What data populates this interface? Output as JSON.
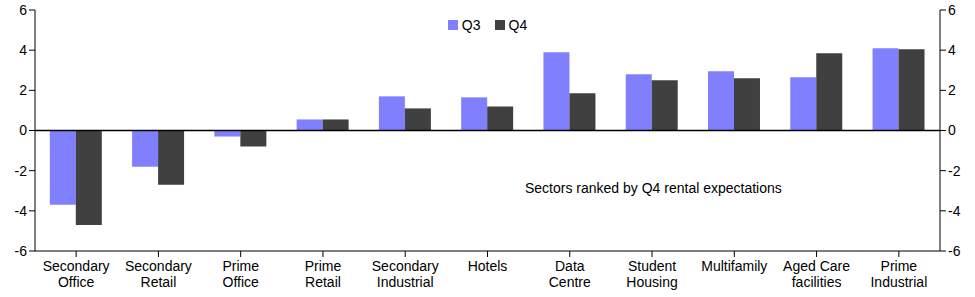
{
  "chart_data": {
    "type": "bar",
    "annotation": "Sectors ranked by Q4 rental expectations",
    "categories": [
      "Secondary\nOffice",
      "Secondary\nRetail",
      "Prime\nOffice",
      "Prime\nRetail",
      "Secondary\nIndustrial",
      "Hotels",
      "Data\nCentre",
      "Student\nHousing",
      "Multifamily",
      "Aged Care\nfacilities",
      "Prime\nIndustrial"
    ],
    "series": [
      {
        "name": "Q3",
        "color": "#8080ff",
        "values": [
          -3.7,
          -1.8,
          -0.3,
          0.55,
          1.7,
          1.65,
          3.9,
          2.8,
          2.95,
          2.65,
          4.1
        ]
      },
      {
        "name": "Q4",
        "color": "#404040",
        "values": [
          -4.7,
          -2.7,
          -0.8,
          0.55,
          1.1,
          1.2,
          1.85,
          2.5,
          2.6,
          3.85,
          4.05
        ]
      }
    ],
    "ylim": [
      -6,
      6
    ],
    "yticks": [
      -6,
      -4,
      -2,
      0,
      2,
      4,
      6
    ],
    "y2lim": [
      -6,
      6
    ],
    "y2ticks": [
      -6,
      -4,
      -2,
      0,
      2,
      4,
      6
    ],
    "legend": "top",
    "grid": false
  }
}
